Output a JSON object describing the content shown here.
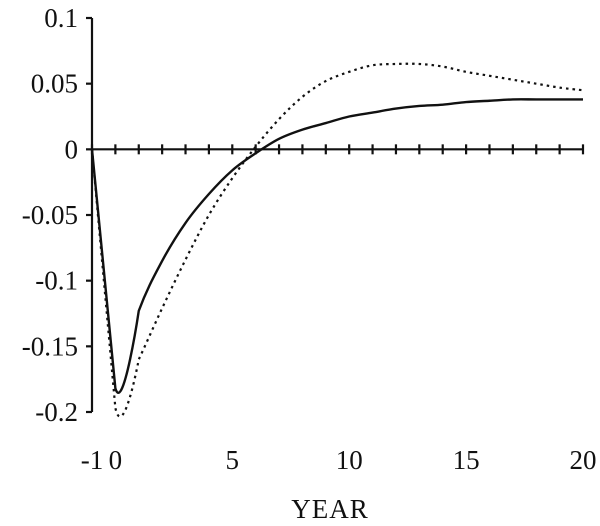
{
  "chart_data": {
    "type": "line",
    "title": "",
    "xlabel": "YEAR",
    "ylabel": "",
    "xlim": [
      -1,
      20
    ],
    "ylim": [
      -0.2,
      0.1
    ],
    "x_tick_labels": [
      {
        "value": -1,
        "label": "-1"
      },
      {
        "value": 0,
        "label": "0"
      },
      {
        "value": 5,
        "label": "5"
      },
      {
        "value": 10,
        "label": "10"
      },
      {
        "value": 15,
        "label": "15"
      },
      {
        "value": 20,
        "label": "20"
      }
    ],
    "y_tick_labels": [
      {
        "value": 0.1,
        "label": "0.1"
      },
      {
        "value": 0.05,
        "label": "0.05"
      },
      {
        "value": 0,
        "label": "0"
      },
      {
        "value": -0.05,
        "label": "-0.05"
      },
      {
        "value": -0.1,
        "label": "-0.1"
      },
      {
        "value": -0.15,
        "label": "-0.15"
      },
      {
        "value": -0.2,
        "label": "-0.2"
      }
    ],
    "zero_line_ticks": [
      -1,
      0,
      1,
      2,
      3,
      4,
      5,
      6,
      7,
      8,
      9,
      10,
      11,
      12,
      13,
      14,
      15,
      16,
      17,
      18,
      19,
      20
    ],
    "grid": false,
    "series": [
      {
        "style": "solid",
        "x": [
          -1,
          0,
          1,
          2,
          3,
          4,
          5,
          6,
          7,
          8,
          9,
          10,
          11,
          12,
          13,
          14,
          15,
          16,
          17,
          18,
          19,
          20
        ],
        "values": [
          0,
          -0.182,
          -0.123,
          -0.085,
          -0.056,
          -0.034,
          -0.016,
          -0.003,
          0.008,
          0.015,
          0.02,
          0.025,
          0.028,
          0.031,
          0.033,
          0.034,
          0.036,
          0.037,
          0.038,
          0.038,
          0.038,
          0.038
        ]
      },
      {
        "style": "dotted",
        "x": [
          -1,
          0,
          1,
          2,
          3,
          4,
          5,
          6,
          7,
          8,
          9,
          10,
          11,
          12,
          13,
          14,
          15,
          16,
          17,
          18,
          19,
          20
        ],
        "values": [
          0,
          -0.197,
          -0.16,
          -0.121,
          -0.084,
          -0.05,
          -0.022,
          0.002,
          0.023,
          0.04,
          0.052,
          0.059,
          0.064,
          0.065,
          0.065,
          0.063,
          0.059,
          0.056,
          0.053,
          0.05,
          0.047,
          0.045
        ]
      }
    ]
  }
}
